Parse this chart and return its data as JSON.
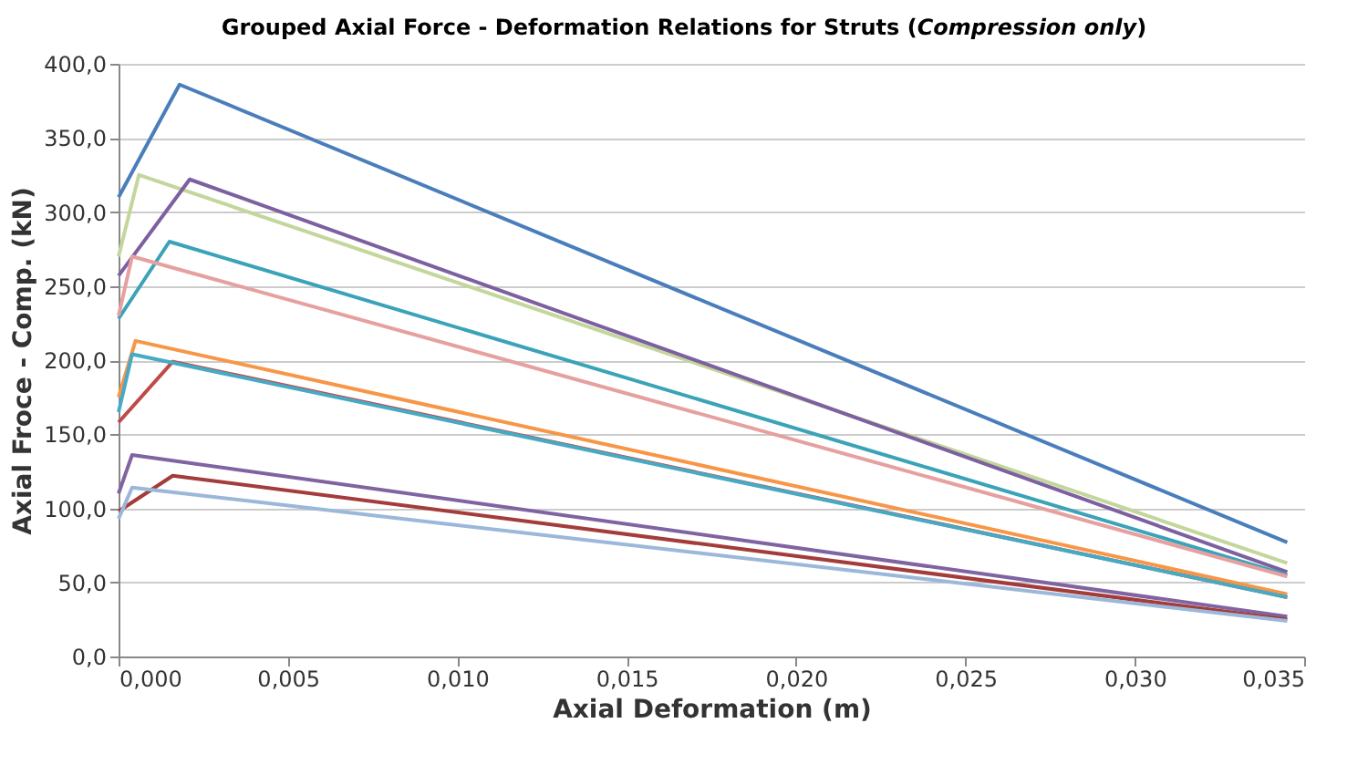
{
  "chart_data": {
    "type": "line",
    "title": [
      "Grouped Axial Force - Deformation Relations for Struts (",
      "Compression only",
      ")"
    ],
    "xlabel": "Axial Deformation (m)",
    "ylabel": "Axial Froce - Comp. (kN)",
    "xlim": [
      0,
      0.035
    ],
    "xticks": [
      {
        "value": 0,
        "label": "0,000"
      },
      {
        "value": 0.005,
        "label": "0,005"
      },
      {
        "value": 0.01,
        "label": "0,010"
      },
      {
        "value": 0.015,
        "label": "0,015"
      },
      {
        "value": 0.02,
        "label": "0,020"
      },
      {
        "value": 0.025,
        "label": "0,025"
      },
      {
        "value": 0.03,
        "label": "0,030"
      },
      {
        "value": 0.035,
        "label": "0,035"
      }
    ],
    "ylim": [
      0,
      400
    ],
    "yticks": [
      {
        "value": 0,
        "label": "0,0"
      },
      {
        "value": 50,
        "label": "50,0"
      },
      {
        "value": 100,
        "label": "100,0"
      },
      {
        "value": 150,
        "label": "150,0"
      },
      {
        "value": 200,
        "label": "200,0"
      },
      {
        "value": 250,
        "label": "250,0"
      },
      {
        "value": 300,
        "label": "300,0"
      },
      {
        "value": 350,
        "label": "350,0"
      },
      {
        "value": 400,
        "label": "400,0"
      }
    ],
    "grid": "y",
    "legend": false,
    "marker": "none",
    "line_style": "solid",
    "series": [
      {
        "color": "#4a7ebb",
        "x": [
          0,
          0.0018,
          0.0345
        ],
        "values": [
          310,
          386,
          77
        ]
      },
      {
        "color": "#be4b48",
        "x": [
          0,
          0.0016,
          0.0345
        ],
        "values": [
          158,
          199,
          40
        ]
      },
      {
        "color": "#c3d69b",
        "x": [
          0,
          0.0006,
          0.0345
        ],
        "values": [
          270,
          325,
          63
        ]
      },
      {
        "color": "#7d60a0",
        "x": [
          0,
          0.0021,
          0.0345
        ],
        "values": [
          257,
          322,
          57
        ]
      },
      {
        "color": "#3aa3b8",
        "x": [
          0,
          0.0015,
          0.0345
        ],
        "values": [
          228,
          280,
          55
        ]
      },
      {
        "color": "#f79646",
        "x": [
          0,
          0.0005,
          0.0345
        ],
        "values": [
          175,
          213,
          42
        ]
      },
      {
        "color": "#46aac5",
        "x": [
          0,
          0.0004,
          0.0345
        ],
        "values": [
          165,
          204,
          40
        ]
      },
      {
        "color": "#e6a0a0",
        "x": [
          0,
          0.0004,
          0.0345
        ],
        "values": [
          230,
          270,
          54
        ]
      },
      {
        "color": "#8064a2",
        "x": [
          0,
          0.0004,
          0.0345
        ],
        "values": [
          110,
          136,
          27
        ]
      },
      {
        "color": "#a33c3a",
        "x": [
          0,
          0.0016,
          0.0345
        ],
        "values": [
          98,
          122,
          25
        ]
      },
      {
        "color": "#9bb7d9",
        "x": [
          0,
          0.0004,
          0.0345
        ],
        "values": [
          93,
          114,
          24
        ]
      }
    ]
  }
}
